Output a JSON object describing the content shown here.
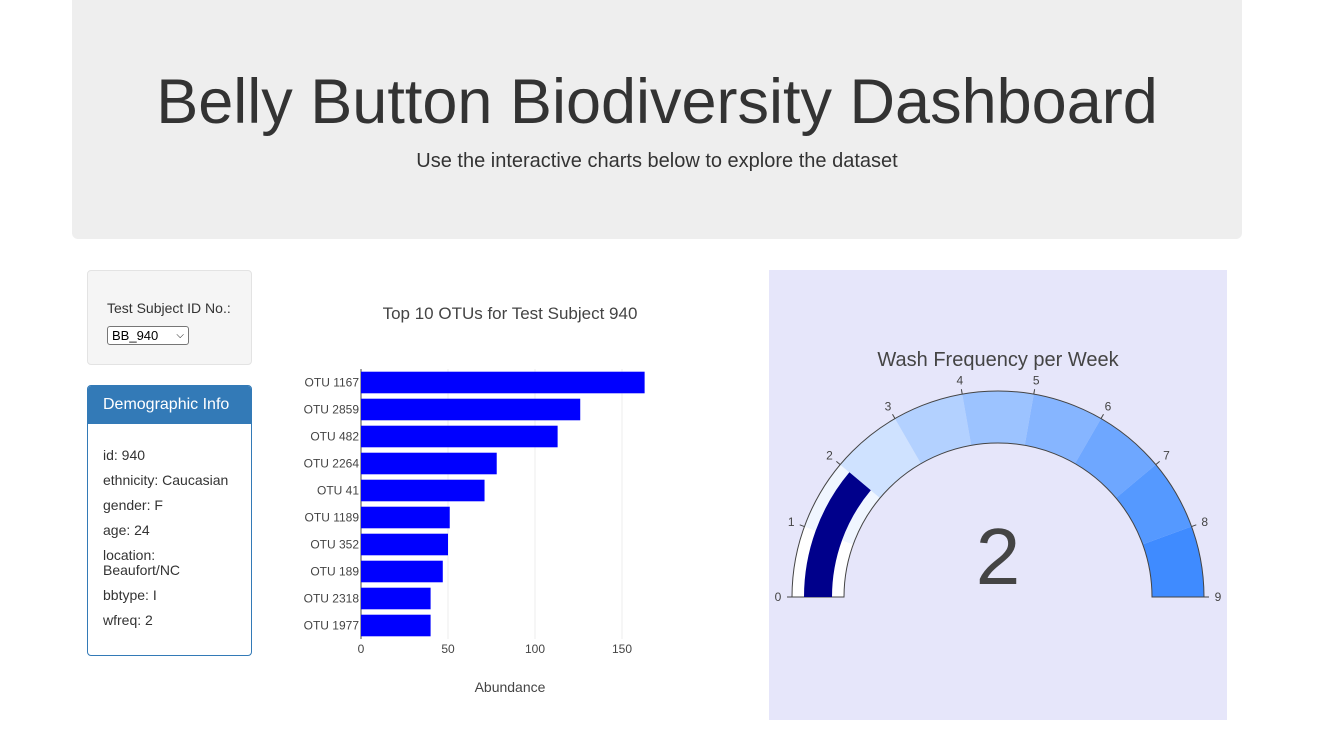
{
  "header": {
    "title": "Belly Button Biodiversity Dashboard",
    "subtitle": "Use the interactive charts below to explore the dataset"
  },
  "selector": {
    "label": "Test Subject ID No.:",
    "selected": "BB_940"
  },
  "demographics": {
    "heading": "Demographic Info",
    "lines": [
      "id: 940",
      "ethnicity: Caucasian",
      "gender: F",
      "age: 24",
      "location: Beaufort/NC",
      "bbtype: I",
      "wfreq: 2"
    ]
  },
  "colors": {
    "bar_fill": "#0000ff",
    "gauge_background": "#e6e6fa",
    "needle_bar": "#00008b"
  },
  "chart_data": [
    {
      "type": "bar",
      "orientation": "horizontal",
      "title": "Top 10 OTUs for Test Subject 940",
      "xlabel": "Abundance",
      "ylabel": "",
      "xlim": [
        0,
        165
      ],
      "xticks": [
        0,
        50,
        100,
        150
      ],
      "categories": [
        "OTU 1167",
        "OTU 2859",
        "OTU 482",
        "OTU 2264",
        "OTU 41",
        "OTU 1189",
        "OTU 352",
        "OTU 189",
        "OTU 2318",
        "OTU 1977"
      ],
      "values": [
        163,
        126,
        113,
        78,
        71,
        51,
        50,
        47,
        40,
        40
      ],
      "grid": "vertical"
    },
    {
      "type": "gauge",
      "title": "Wash Frequency per Week",
      "value": 2,
      "range": [
        0,
        9
      ],
      "ticks": [
        0,
        1,
        2,
        3,
        4,
        5,
        6,
        7,
        8,
        9
      ],
      "step_colors": [
        "#ffffff",
        "#f0f6ff",
        "#cfe2ff",
        "#b3d1ff",
        "#9cc3ff",
        "#86b5ff",
        "#6ea7ff",
        "#5599ff",
        "#3f8bff"
      ]
    }
  ]
}
